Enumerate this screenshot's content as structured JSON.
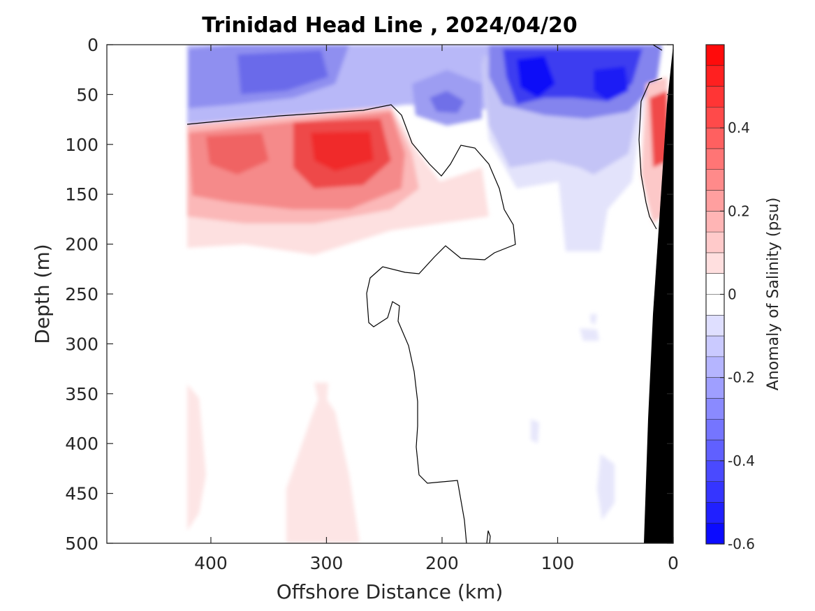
{
  "chart_data": {
    "type": "heatmap",
    "title": "Trinidad Head Line , 2024/04/20",
    "xlabel": "Offshore Distance (km)",
    "ylabel": "Depth (m)",
    "x_reversed": true,
    "y_reversed": true,
    "xlim": [
      490,
      0
    ],
    "ylim": [
      0,
      500
    ],
    "xticks": [
      400,
      300,
      200,
      100,
      0
    ],
    "yticks": [
      0,
      50,
      100,
      150,
      200,
      250,
      300,
      350,
      400,
      450,
      500
    ],
    "colorbar": {
      "label": "Anomaly of Salinity (psu)",
      "range": [
        -0.6,
        0.6
      ],
      "step": 0.05,
      "ticks": [
        0.4,
        0.2,
        0,
        -0.2,
        -0.4,
        -0.6
      ],
      "tick_labels": [
        "0.4",
        "0.2",
        "0",
        "-0.2",
        "-0.4",
        "-0.6"
      ],
      "colormap": "blue-white-red diverging"
    },
    "data_extent": {
      "x_start_km": 420,
      "x_end_km": 0
    },
    "features": [
      {
        "name": "positive salinity anomaly core",
        "x": [
          240,
          320
        ],
        "depth": [
          80,
          150
        ],
        "max_value": 0.5
      },
      {
        "name": "secondary positive core",
        "x": [
          330,
          420
        ],
        "depth": [
          85,
          160
        ],
        "max_value": 0.35
      },
      {
        "name": "nearshore positive anomaly",
        "x": [
          0,
          30
        ],
        "depth": [
          40,
          190
        ],
        "max_value": 0.35
      },
      {
        "name": "surface negative anomaly offshore",
        "x": [
          270,
          420
        ],
        "depth": [
          0,
          70
        ],
        "min_value": -0.3
      },
      {
        "name": "surface negative anomaly core",
        "x": [
          30,
          150
        ],
        "depth": [
          0,
          90
        ],
        "min_value": -0.6
      },
      {
        "name": "deep weak positive anomaly",
        "x": [
          270,
          390
        ],
        "depth": [
          330,
          500
        ],
        "max_value": 0.1
      },
      {
        "name": "weak negative tongue",
        "x": [
          60,
          110
        ],
        "depth": [
          80,
          210
        ],
        "min_value": -0.15
      }
    ],
    "zero_contour_depth_m": 80,
    "bottom_topography_color": "#000000"
  }
}
